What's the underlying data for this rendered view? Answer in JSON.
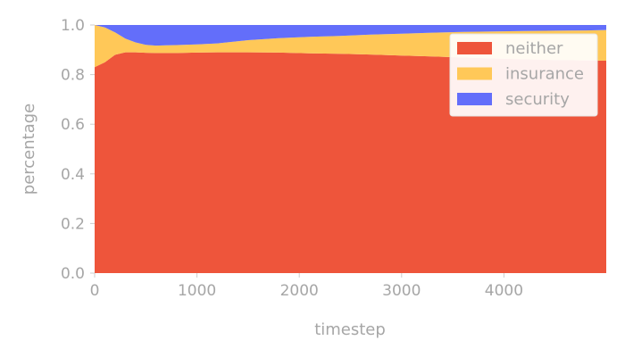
{
  "chart_data": {
    "type": "area",
    "stacked": true,
    "xlabel": "timestep",
    "ylabel": "percentage",
    "xlim": [
      0,
      5000
    ],
    "ylim": [
      0,
      1.0
    ],
    "x_ticks": [
      0,
      1000,
      2000,
      3000,
      4000
    ],
    "y_ticks": [
      0.0,
      0.2,
      0.4,
      0.6,
      0.8,
      1.0
    ],
    "grid": false,
    "legend": "top-right",
    "x": [
      0,
      100,
      200,
      300,
      400,
      500,
      600,
      700,
      800,
      1000,
      1200,
      1500,
      1800,
      2100,
      2400,
      2700,
      3000,
      3300,
      3600,
      3900,
      4200,
      4500,
      4800,
      5000
    ],
    "series": [
      {
        "name": "neither",
        "color": "#ee553b",
        "values": [
          0.83,
          0.85,
          0.88,
          0.89,
          0.89,
          0.888,
          0.887,
          0.887,
          0.887,
          0.889,
          0.89,
          0.89,
          0.889,
          0.886,
          0.884,
          0.881,
          0.877,
          0.873,
          0.869,
          0.865,
          0.862,
          0.859,
          0.857,
          0.856
        ]
      },
      {
        "name": "insurance",
        "color": "#ffc858",
        "values": [
          0.17,
          0.14,
          0.09,
          0.055,
          0.04,
          0.032,
          0.03,
          0.031,
          0.032,
          0.033,
          0.036,
          0.049,
          0.058,
          0.066,
          0.072,
          0.08,
          0.088,
          0.096,
          0.103,
          0.109,
          0.114,
          0.118,
          0.121,
          0.124
        ]
      },
      {
        "name": "security",
        "color": "#636efa",
        "values": [
          0.0,
          0.01,
          0.03,
          0.055,
          0.07,
          0.08,
          0.083,
          0.082,
          0.081,
          0.078,
          0.074,
          0.061,
          0.053,
          0.048,
          0.044,
          0.039,
          0.035,
          0.031,
          0.028,
          0.026,
          0.024,
          0.023,
          0.022,
          0.02
        ]
      }
    ]
  }
}
